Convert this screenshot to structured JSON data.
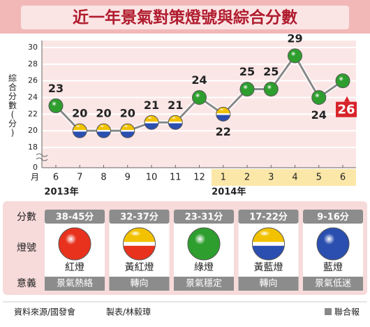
{
  "chart_data": {
    "type": "line",
    "title": "近一年景氣對策燈號與綜合分數",
    "y_label": "綜合分數(分)",
    "x_unit": "月",
    "categories": [
      "6",
      "7",
      "8",
      "9",
      "10",
      "11",
      "12",
      "1",
      "2",
      "3",
      "4",
      "5",
      "6"
    ],
    "years": [
      {
        "label": "2013年",
        "start": 0
      },
      {
        "label": "2014年",
        "start": 7
      }
    ],
    "values": [
      23,
      20,
      20,
      20,
      21,
      21,
      24,
      22,
      25,
      25,
      29,
      24,
      26
    ],
    "point_colors": [
      [
        "#2e9e2e",
        "#2e9e2e"
      ],
      [
        "#f2c200",
        "#2a4fb0"
      ],
      [
        "#f2c200",
        "#2a4fb0"
      ],
      [
        "#f2c200",
        "#2a4fb0"
      ],
      [
        "#f2c200",
        "#2a4fb0"
      ],
      [
        "#f2c200",
        "#2a4fb0"
      ],
      [
        "#2e9e2e",
        "#2e9e2e"
      ],
      [
        "#f2c200",
        "#2a4fb0"
      ],
      [
        "#2e9e2e",
        "#2e9e2e"
      ],
      [
        "#2e9e2e",
        "#2e9e2e"
      ],
      [
        "#2e9e2e",
        "#2e9e2e"
      ],
      [
        "#2e9e2e",
        "#2e9e2e"
      ],
      [
        "#2e9e2e",
        "#2e9e2e"
      ]
    ],
    "ylim": [
      16,
      30
    ],
    "yticks": [
      0,
      18,
      20,
      22,
      24,
      26,
      28,
      30
    ],
    "axis_break": true,
    "grid": true,
    "legend": {
      "row_labels": [
        "分數",
        "燈號",
        "意義"
      ],
      "items": [
        {
          "range": "38-45分",
          "name": "紅燈",
          "meaning": "景氣熱絡",
          "colors": [
            "#e8321e",
            "#e8321e"
          ]
        },
        {
          "range": "32-37分",
          "name": "黃紅燈",
          "meaning": "轉向",
          "colors": [
            "#f2c200",
            "#e8321e"
          ]
        },
        {
          "range": "23-31分",
          "name": "綠燈",
          "meaning": "景氣穩定",
          "colors": [
            "#2e9e2e",
            "#2e9e2e"
          ]
        },
        {
          "range": "17-22分",
          "name": "黃藍燈",
          "meaning": "轉向",
          "colors": [
            "#f2c200",
            "#2a4fb0"
          ]
        },
        {
          "range": "9-16分",
          "name": "藍燈",
          "meaning": "景氣低迷",
          "colors": [
            "#2a4fb0",
            "#2a4fb0"
          ]
        }
      ]
    },
    "source": "資料來源/國發會",
    "author": "製表/林毅璋",
    "publisher": "聯合報"
  }
}
